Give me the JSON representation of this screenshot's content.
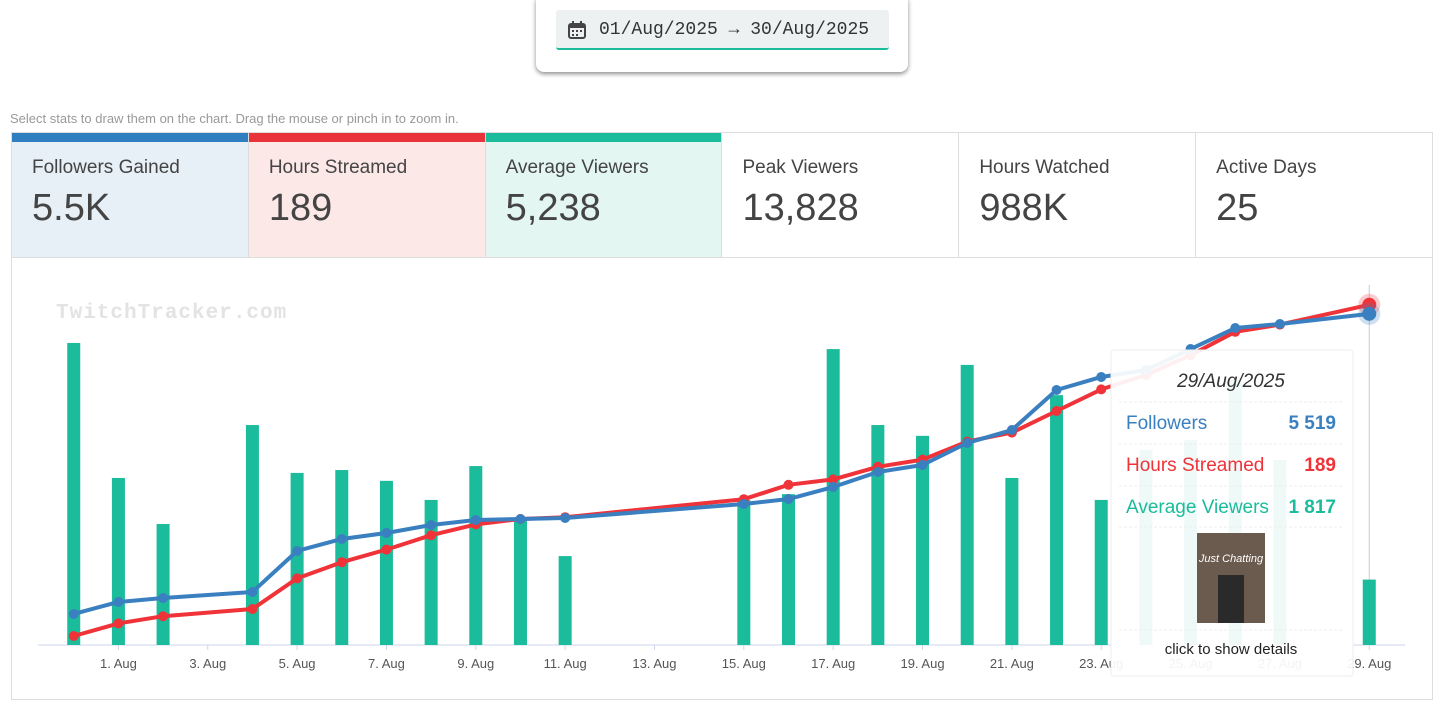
{
  "header": {
    "date_range": "01/Aug/2025 → 30/Aug/2025",
    "hint": "Select stats to draw them on the chart. Drag the mouse or pinch in to zoom in."
  },
  "stats": [
    {
      "label": "Followers Gained",
      "value": "5.5K"
    },
    {
      "label": "Hours Streamed",
      "value": "189"
    },
    {
      "label": "Average Viewers",
      "value": "5,238"
    },
    {
      "label": "Peak Viewers",
      "value": "13,828"
    },
    {
      "label": "Hours Watched",
      "value": "988K"
    },
    {
      "label": "Active Days",
      "value": "25"
    }
  ],
  "chart_data": {
    "type": "combo",
    "watermark": "TwitchTracker.com",
    "x": [
      0,
      1,
      2,
      4,
      5,
      6,
      7,
      8,
      9,
      10,
      11,
      15,
      16,
      17,
      18,
      19,
      20,
      21,
      22,
      23,
      24,
      25,
      26,
      27,
      29
    ],
    "xlim": [
      -0.8,
      29.8
    ],
    "xticks": [
      {
        "value": 1,
        "label": "1. Aug"
      },
      {
        "value": 3,
        "label": "3. Aug"
      },
      {
        "value": 5,
        "label": "5. Aug"
      },
      {
        "value": 7,
        "label": "7. Aug"
      },
      {
        "value": 9,
        "label": "9. Aug"
      },
      {
        "value": 11,
        "label": "11. Aug"
      },
      {
        "value": 13,
        "label": "13. Aug"
      },
      {
        "value": 15,
        "label": "15. Aug"
      },
      {
        "value": 17,
        "label": "17. Aug"
      },
      {
        "value": 19,
        "label": "19. Aug"
      },
      {
        "value": 21,
        "label": "21. Aug"
      },
      {
        "value": 23,
        "label": "23. Aug"
      },
      {
        "value": 25,
        "label": "25. Aug"
      },
      {
        "value": 27,
        "label": "27. Aug"
      },
      {
        "value": 29,
        "label": "29. Aug"
      }
    ],
    "series": [
      {
        "name": "Average Viewers",
        "type": "bar",
        "color": "#1bbc9b",
        "ylim": [
          0,
          10000
        ],
        "values": [
          8390,
          4640,
          3360,
          6110,
          4780,
          4860,
          4560,
          4030,
          4970,
          3500,
          2470,
          4030,
          4190,
          8220,
          6110,
          5810,
          7780,
          4640,
          6940,
          4030,
          5420,
          5690,
          7360,
          5140,
          1817
        ],
        "value_labels": [
          null,
          null,
          null,
          null,
          null,
          null,
          null,
          null,
          null,
          null,
          null,
          null,
          null,
          null,
          null,
          null,
          null,
          null,
          null,
          null,
          null,
          null,
          null,
          null,
          "1 817"
        ]
      },
      {
        "name": "Hours Streamed",
        "type": "line",
        "color": "#ef3339",
        "ylim": [
          0,
          200
        ],
        "values": [
          5,
          12,
          16,
          20,
          37,
          46,
          53,
          61,
          67,
          70,
          71,
          81,
          89,
          92,
          99,
          103,
          113,
          118,
          130,
          142,
          150,
          161,
          174,
          178,
          189
        ],
        "value_labels": [
          null,
          null,
          null,
          null,
          null,
          null,
          null,
          null,
          null,
          null,
          null,
          null,
          null,
          null,
          null,
          null,
          null,
          null,
          null,
          null,
          null,
          null,
          null,
          null,
          "189"
        ]
      },
      {
        "name": "Followers",
        "type": "line",
        "color": "#3a80c0",
        "ylim": [
          0,
          6000
        ],
        "values": [
          517,
          717,
          783,
          883,
          1567,
          1767,
          1867,
          2000,
          2083,
          2100,
          2117,
          2350,
          2433,
          2633,
          2883,
          3000,
          3367,
          3583,
          4250,
          4467,
          4583,
          4933,
          5283,
          5350,
          5519
        ],
        "value_labels": [
          null,
          null,
          null,
          null,
          null,
          null,
          null,
          null,
          null,
          null,
          null,
          null,
          null,
          null,
          null,
          null,
          null,
          null,
          null,
          null,
          null,
          null,
          null,
          null,
          "5 519"
        ]
      }
    ],
    "tooltip": {
      "title": "29/Aug/2025",
      "image_text": "Just Chatting",
      "footer": "click to show details"
    }
  }
}
